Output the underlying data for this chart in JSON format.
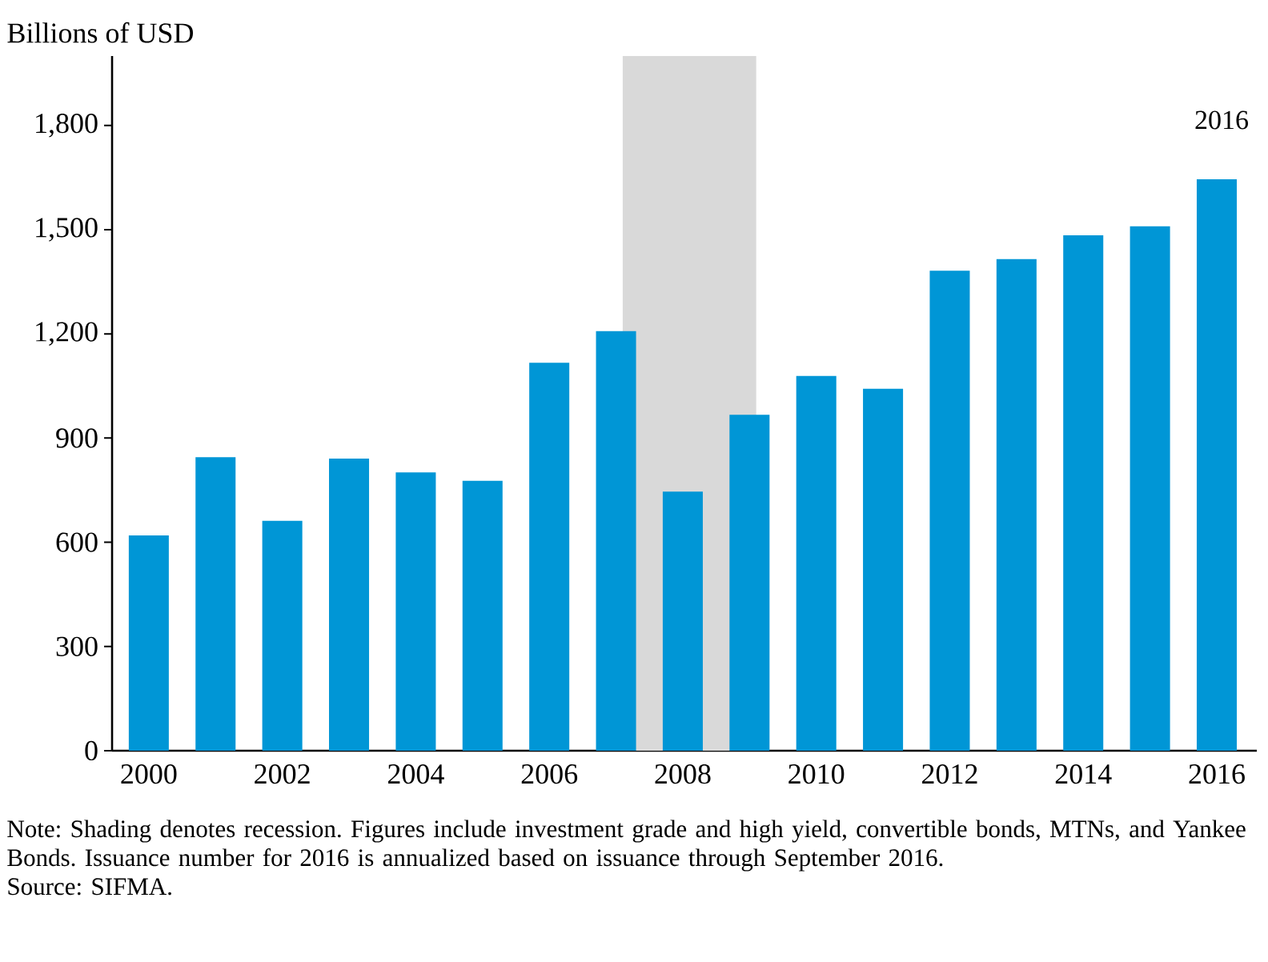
{
  "chart_data": {
    "type": "bar",
    "ylabel": "Billions of USD",
    "x": [
      2000,
      2001,
      2002,
      2003,
      2004,
      2005,
      2006,
      2007,
      2008,
      2009,
      2010,
      2011,
      2012,
      2013,
      2014,
      2015,
      2016
    ],
    "values": [
      620,
      845,
      662,
      841,
      801,
      777,
      1117,
      1208,
      746,
      967,
      1079,
      1042,
      1382,
      1415,
      1484,
      1510,
      1645
    ],
    "color": "#0096d6",
    "xlim": [
      1999.45,
      2016.6
    ],
    "ylim": [
      0,
      2000
    ],
    "xticks": [
      2000,
      2002,
      2004,
      2006,
      2008,
      2010,
      2012,
      2014,
      2016
    ],
    "yticks": [
      0,
      300,
      600,
      900,
      {
        "value": 1200,
        "label": "1,200"
      },
      {
        "value": 1500,
        "label": "1,500"
      },
      {
        "value": 1800,
        "label": "1,800"
      }
    ],
    "bands": [
      {
        "axis": "x",
        "from": 2007.1,
        "to": 2009.1,
        "color": "#d9d9d9"
      }
    ],
    "annotations": [
      "2016",
      "Note: Shading denotes recession. Figures include investment grade and high yield, convertible bonds, MTNs, and Yankee Bonds. Issuance number for 2016 is annualized based on issuance through September 2016.",
      "Source: SIFMA."
    ]
  }
}
